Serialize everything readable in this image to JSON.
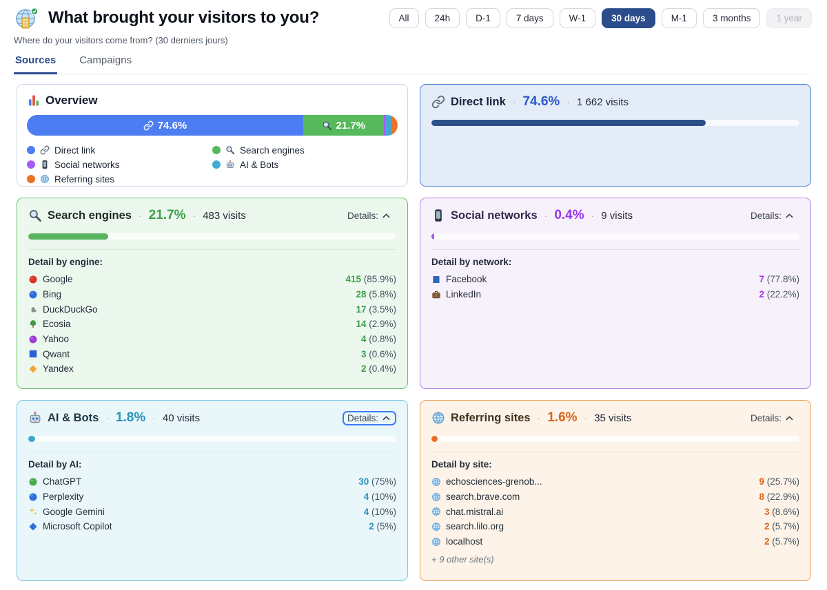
{
  "header": {
    "title": "What brought your visitors to you?",
    "subtitle": "Where do your visitors come from? (30 derniers jours)",
    "logo_icon": "site-logo-icon",
    "ranges": [
      {
        "label": "All"
      },
      {
        "label": "24h"
      },
      {
        "label": "D-1"
      },
      {
        "label": "7 days"
      },
      {
        "label": "W-1"
      },
      {
        "label": "30 days",
        "active": true
      },
      {
        "label": "M-1"
      },
      {
        "label": "3 months"
      },
      {
        "label": "1 year",
        "disabled": true
      }
    ],
    "tabs": [
      {
        "label": "Sources",
        "active": true
      },
      {
        "label": "Campaigns",
        "active": false
      }
    ]
  },
  "overview": {
    "icon": "bar-chart-icon",
    "title": "Overview",
    "bar": [
      {
        "name": "Direct link",
        "pct": 74.6,
        "color": "#4d7df2",
        "icon": "link-icon",
        "label": "74.6%"
      },
      {
        "name": "Search engines",
        "pct": 21.7,
        "color": "#56ba5c",
        "icon": "search-icon",
        "label": "21.7%"
      },
      {
        "name": "Social networks",
        "pct": 0.4,
        "color": "#a55bf5"
      },
      {
        "name": "AI & Bots",
        "pct": 1.8,
        "color": "#41abd4"
      },
      {
        "name": "Referring sites",
        "pct": 1.6,
        "color": "#ed7226"
      }
    ],
    "legend": [
      {
        "label": "Direct link",
        "dot": "#4d7df2",
        "icon": "link-icon"
      },
      {
        "label": "Search engines",
        "dot": "#56ba5c",
        "icon": "search-icon"
      },
      {
        "label": "Social networks",
        "dot": "#a55bf5",
        "icon": "mobile-phone-icon"
      },
      {
        "label": "AI & Bots",
        "dot": "#41abd4",
        "icon": "robot-icon"
      },
      {
        "label": "Referring sites",
        "dot": "#ed7226",
        "icon": "globe-icon"
      }
    ]
  },
  "cards": [
    {
      "id": "direct-link",
      "icon": "link-icon",
      "title": "Direct link",
      "percent": "74.6%",
      "visits": "1 662 visits",
      "bar_pct": 74.6,
      "colors": {
        "bg": "#e4ecf7",
        "border": "#4f83d8",
        "accent": "#2b58c9",
        "fill": "#2c4f8a",
        "title": "#16243f"
      }
    },
    {
      "id": "search-engines",
      "icon": "search-icon",
      "title": "Search engines",
      "percent": "21.7%",
      "visits": "483 visits",
      "bar_pct": 21.7,
      "details_label": "Details:",
      "detail_title": "Detail by engine:",
      "colors": {
        "bg": "#ecf7ee",
        "border": "#69c16f",
        "accent": "#3ba14a",
        "fill": "#57b55d",
        "title": "#1e2b21",
        "divider": "#d7ebd8"
      },
      "rows": [
        {
          "icon": "red-circle",
          "label": "Google",
          "value": "415",
          "share": "(85.9%)"
        },
        {
          "icon": "blue-circle",
          "label": "Bing",
          "value": "28",
          "share": "(5.8%)"
        },
        {
          "icon": "duck-icon",
          "label": "DuckDuckGo",
          "value": "17",
          "share": "(3.5%)"
        },
        {
          "icon": "tree-icon",
          "label": "Ecosia",
          "value": "14",
          "share": "(2.9%)"
        },
        {
          "icon": "purple-circle",
          "label": "Yahoo",
          "value": "4",
          "share": "(0.8%)"
        },
        {
          "icon": "blue-square",
          "label": "Qwant",
          "value": "3",
          "share": "(0.6%)"
        },
        {
          "icon": "orange-diamond",
          "label": "Yandex",
          "value": "2",
          "share": "(0.4%)"
        }
      ]
    },
    {
      "id": "social-networks",
      "icon": "mobile-phone-icon",
      "title": "Social networks",
      "percent": "0.4%",
      "visits": "9 visits",
      "bar_pct": 0.4,
      "details_label": "Details:",
      "detail_title": "Detail by network:",
      "colors": {
        "bg": "#f7f1fc",
        "border": "#b382e9",
        "accent": "#9a36ee",
        "fill": "#a55bf5",
        "title": "#33284c",
        "divider": "#e8dcf5"
      },
      "rows": [
        {
          "icon": "book-icon",
          "label": "Facebook",
          "value": "7",
          "share": "(77.8%)"
        },
        {
          "icon": "briefcase-icon",
          "label": "LinkedIn",
          "value": "2",
          "share": "(22.2%)"
        }
      ]
    },
    {
      "id": "ai-bots",
      "icon": "robot-icon",
      "title": "AI & Bots",
      "percent": "1.8%",
      "visits": "40 visits",
      "bar_pct": 1.8,
      "details_label": "Details:",
      "detail_title": "Detail by AI:",
      "details_focused": true,
      "colors": {
        "bg": "#e9f6fa",
        "border": "#7ec9e2",
        "accent": "#2a93b9",
        "fill": "#3ba7cf",
        "title": "#1d3743",
        "divider": "#d2eaf2"
      },
      "rows": [
        {
          "icon": "green-circle",
          "label": "ChatGPT",
          "value": "30",
          "share": "(75%)"
        },
        {
          "icon": "blue-circle",
          "label": "Perplexity",
          "value": "4",
          "share": "(10%)"
        },
        {
          "icon": "sparkles-icon",
          "label": "Google Gemini",
          "value": "4",
          "share": "(10%)"
        },
        {
          "icon": "blue-diamond",
          "label": "Microsoft Copilot",
          "value": "2",
          "share": "(5%)"
        }
      ]
    },
    {
      "id": "referring-sites",
      "icon": "globe-icon",
      "title": "Referring sites",
      "percent": "1.6%",
      "visits": "35 visits",
      "bar_pct": 1.6,
      "details_label": "Details:",
      "detail_title": "Detail by site:",
      "colors": {
        "bg": "#fdf3e8",
        "border": "#e7a561",
        "accent": "#dd6317",
        "fill": "#e96f1f",
        "title": "#44331f",
        "divider": "#f1e0c9"
      },
      "rows": [
        {
          "icon": "globe-icon",
          "label": "echosciences-grenob...",
          "value": "9",
          "share": "(25.7%)"
        },
        {
          "icon": "globe-icon",
          "label": "search.brave.com",
          "value": "8",
          "share": "(22.9%)"
        },
        {
          "icon": "globe-icon",
          "label": "chat.mistral.ai",
          "value": "3",
          "share": "(8.6%)"
        },
        {
          "icon": "globe-icon",
          "label": "search.lilo.org",
          "value": "2",
          "share": "(5.7%)"
        },
        {
          "icon": "globe-icon",
          "label": "localhost",
          "value": "2",
          "share": "(5.7%)"
        }
      ],
      "footnote": "+ 9 other site(s)"
    }
  ]
}
